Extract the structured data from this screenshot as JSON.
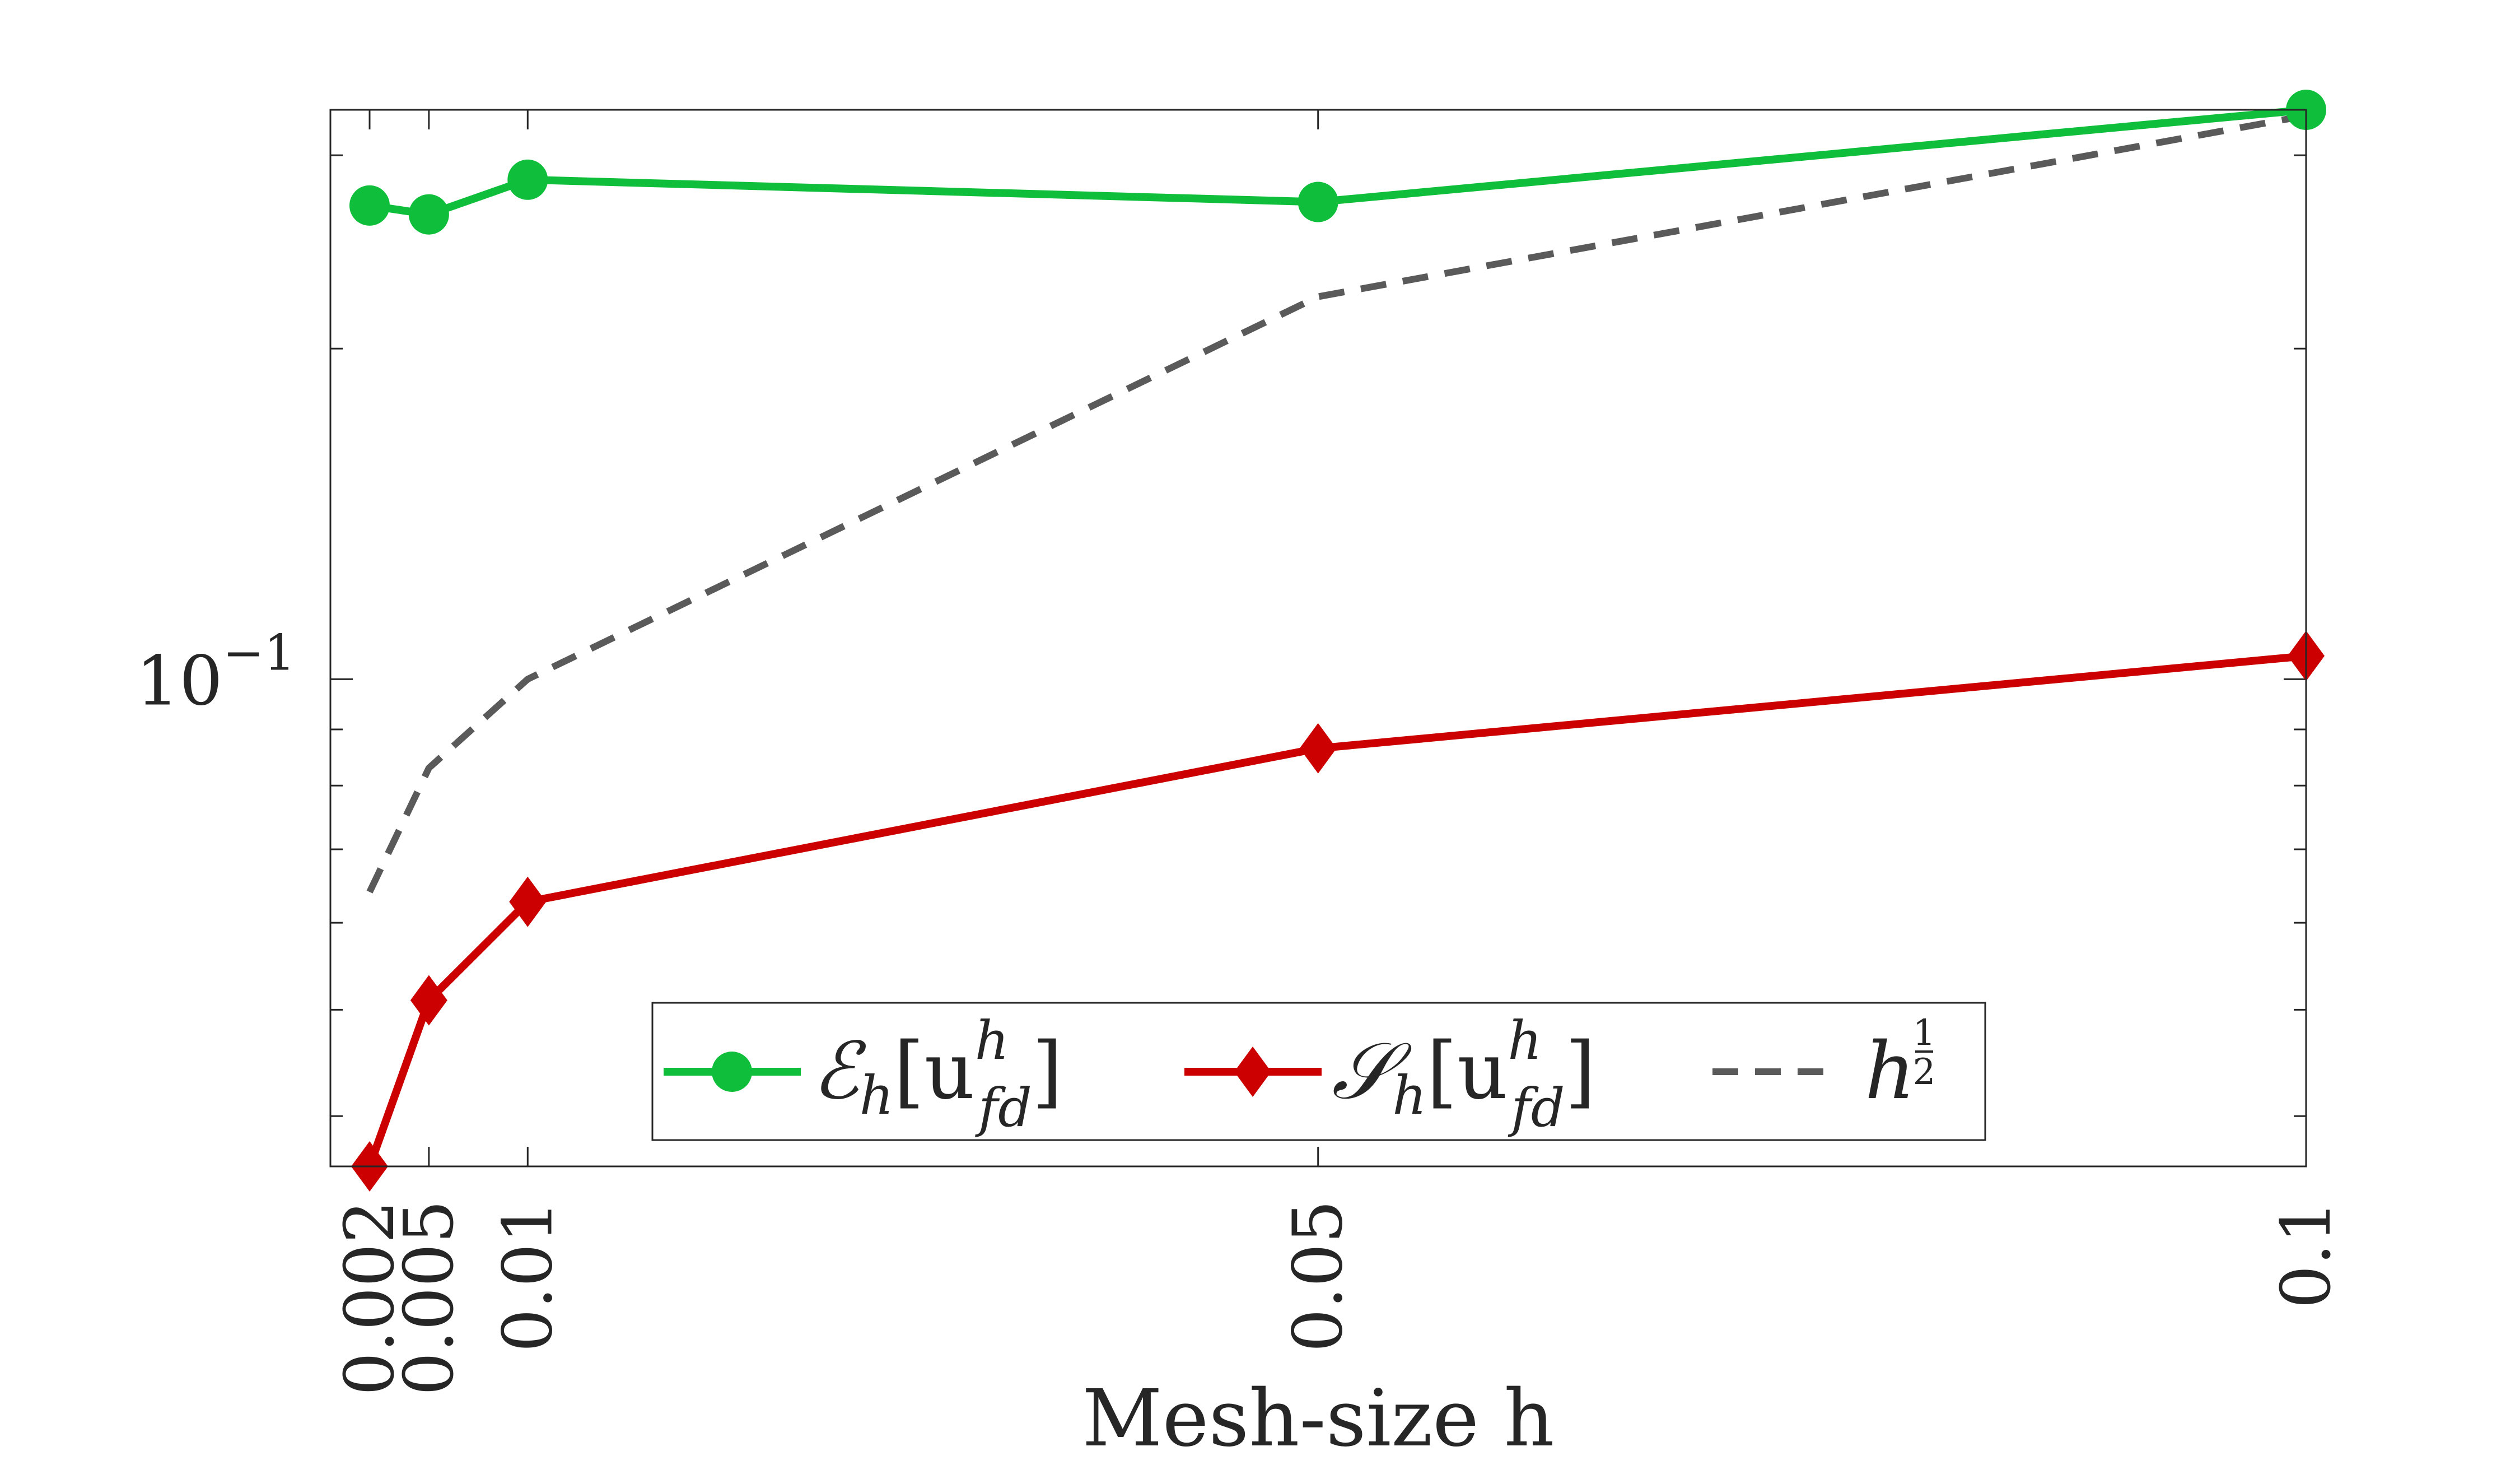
{
  "chart_data": {
    "type": "line",
    "title": "",
    "xlabel": "Mesh-size h",
    "ylabel": "",
    "xscale": "linear",
    "yscale": "log",
    "xlim": [
      0.002,
      0.1
    ],
    "ylim": [
      0.036,
      0.33
    ],
    "x": [
      0.002,
      0.005,
      0.01,
      0.05,
      0.1
    ],
    "x_tick_labels": [
      "0.002",
      "0.005",
      "0.01",
      "0.05",
      "0.1"
    ],
    "y_tick_labels": [
      {
        "value": 0.1,
        "label": "10^-1"
      }
    ],
    "legend_position": "bottom-center",
    "series": [
      {
        "name": "E_h[u^h_fd]",
        "display": [
          "ℰ",
          "h",
          "[u",
          "h",
          "fd",
          "]"
        ],
        "color": "#0fbf3c",
        "marker": "circle",
        "style": "solid",
        "values": [
          0.27,
          0.265,
          0.285,
          0.272,
          0.33
        ]
      },
      {
        "name": "S_h[u^h_fd]",
        "display": [
          "𝒮",
          "h",
          "[u",
          "h",
          "fd",
          "]"
        ],
        "color": "#cc0000",
        "marker": "diamond",
        "style": "solid",
        "values": [
          0.036,
          0.051,
          0.0627,
          0.0865,
          0.105
        ]
      },
      {
        "name": "h^(1/2)",
        "display": [
          "h",
          "1",
          "2"
        ],
        "color": "#5a5a5a",
        "marker": "none",
        "style": "dashed",
        "values": [
          0.064,
          0.083,
          0.1,
          0.223,
          0.326
        ]
      }
    ]
  }
}
